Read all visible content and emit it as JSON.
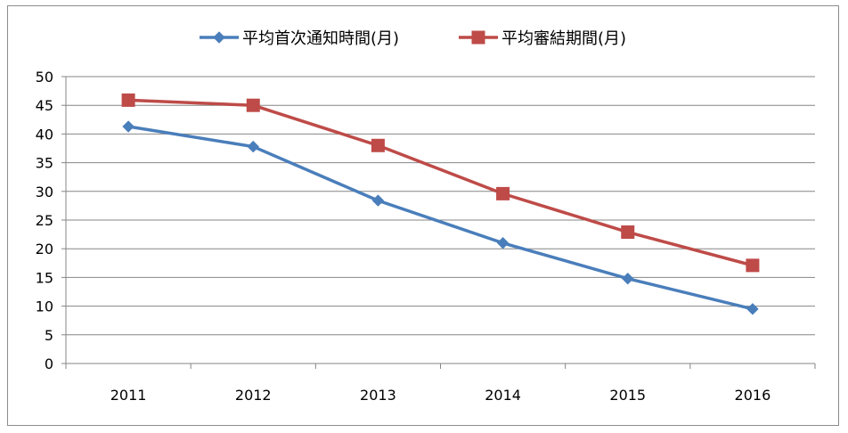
{
  "chart_data": {
    "type": "line",
    "title": "",
    "xlabel": "",
    "ylabel": "",
    "categories": [
      "2011",
      "2012",
      "2013",
      "2014",
      "2015",
      "2016"
    ],
    "ylim": [
      0,
      50
    ],
    "yticks": [
      "0",
      "5",
      "10",
      "15",
      "20",
      "25",
      "30",
      "35",
      "40",
      "45",
      "50"
    ],
    "grid": true,
    "legend_position": "top",
    "series": [
      {
        "name": "平均首次通知時間(月)",
        "color": "#4a7ebb",
        "marker": "diamond",
        "values": [
          41.3,
          37.8,
          28.4,
          21.0,
          14.8,
          9.5
        ]
      },
      {
        "name": "平均審結期間(月)",
        "color": "#be4b48",
        "marker": "square",
        "values": [
          45.9,
          45.0,
          38.0,
          29.6,
          22.9,
          17.1
        ]
      }
    ]
  }
}
